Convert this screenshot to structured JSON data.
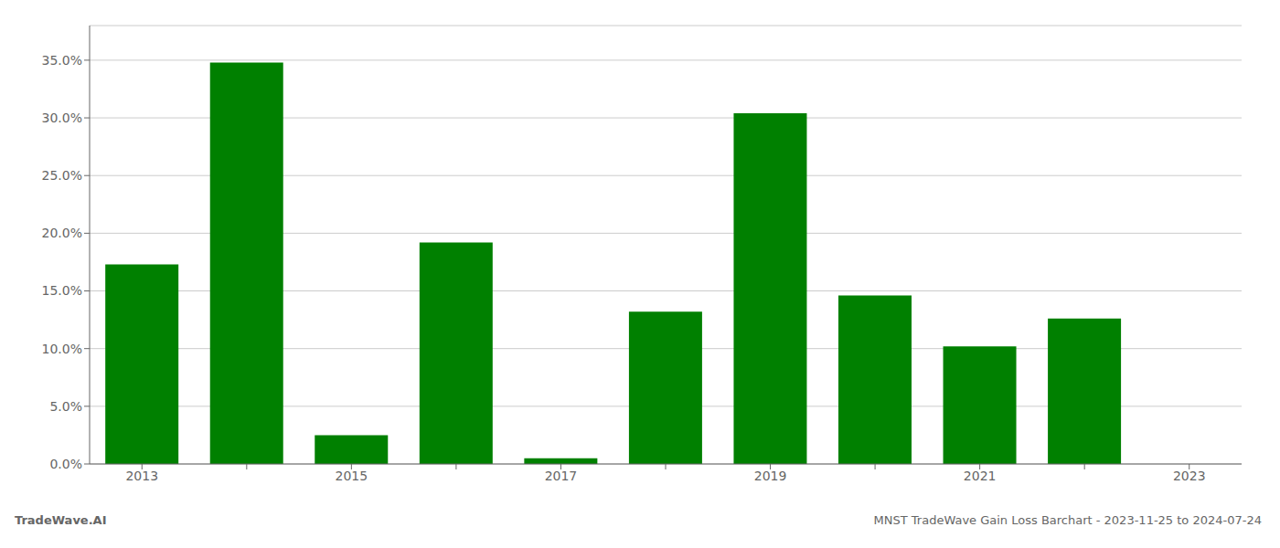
{
  "chart_data": {
    "type": "bar",
    "categories": [
      "2013",
      null,
      "2015",
      null,
      "2017",
      null,
      "2019",
      null,
      "2021",
      null,
      "2023"
    ],
    "values": [
      0.173,
      0.348,
      0.025,
      0.192,
      0.005,
      0.132,
      0.304,
      0.146,
      0.102,
      0.126,
      0.0
    ],
    "color": "#008000",
    "ylim": [
      0,
      0.38
    ],
    "yticks": [
      {
        "value": 0.0,
        "label": "0.0%"
      },
      {
        "value": 0.05,
        "label": "5.0%"
      },
      {
        "value": 0.1,
        "label": "10.0%"
      },
      {
        "value": 0.15,
        "label": "15.0%"
      },
      {
        "value": 0.2,
        "label": "20.0%"
      },
      {
        "value": 0.25,
        "label": "25.0%"
      },
      {
        "value": 0.3,
        "label": "30.0%"
      },
      {
        "value": 0.35,
        "label": "35.0%"
      }
    ],
    "grid": true,
    "annotations": [
      "TradeWave.AI",
      "MNST TradeWave Gain Loss Barchart - 2023-11-25 to 2024-07-24"
    ]
  }
}
